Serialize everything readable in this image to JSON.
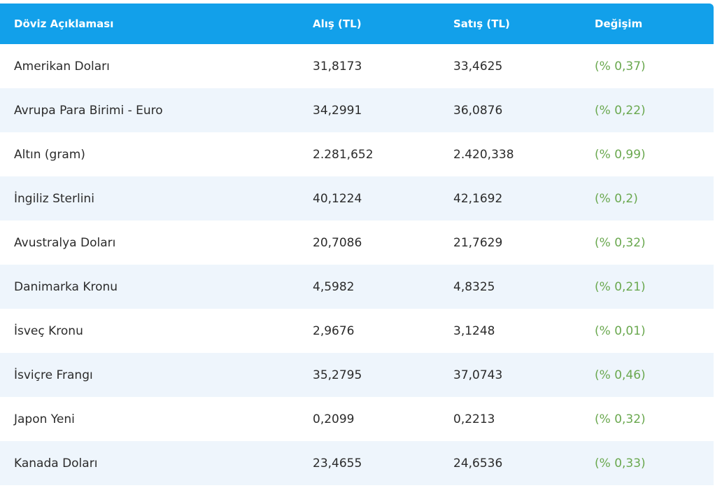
{
  "table": {
    "header": [
      "Döviz Açıklaması",
      "Alış (TL)",
      "Satış (TL)",
      "Değişim"
    ],
    "rows": [
      [
        "Amerikan Doları",
        "31,8173",
        "33,4625",
        "(% 0,37)"
      ],
      [
        "Avrupa Para Birimi - Euro",
        "34,2991",
        "36,0876",
        "(% 0,22)"
      ],
      [
        "Altın (gram)",
        "2.281,652",
        "2.420,338",
        "(% 0,99)"
      ],
      [
        "İngiliz Sterlini",
        "40,1224",
        "42,1692",
        "(% 0,2)"
      ],
      [
        "Avustralya Doları",
        "20,7086",
        "21,7629",
        "(% 0,32)"
      ],
      [
        "Danimarka Kronu",
        "4,5982",
        "4,8325",
        "(% 0,21)"
      ],
      [
        "İsveç Kronu",
        "2,9676",
        "3,1248",
        "(% 0,01)"
      ],
      [
        "İsviçre Frangı",
        "35,2795",
        "37,0743",
        "(% 0,46)"
      ],
      [
        "Japon Yeni",
        "0,2099",
        "0,2213",
        "(% 0,32)"
      ],
      [
        "Kanada Doları",
        "23,4655",
        "24,6536",
        "(% 0,33)"
      ]
    ]
  }
}
